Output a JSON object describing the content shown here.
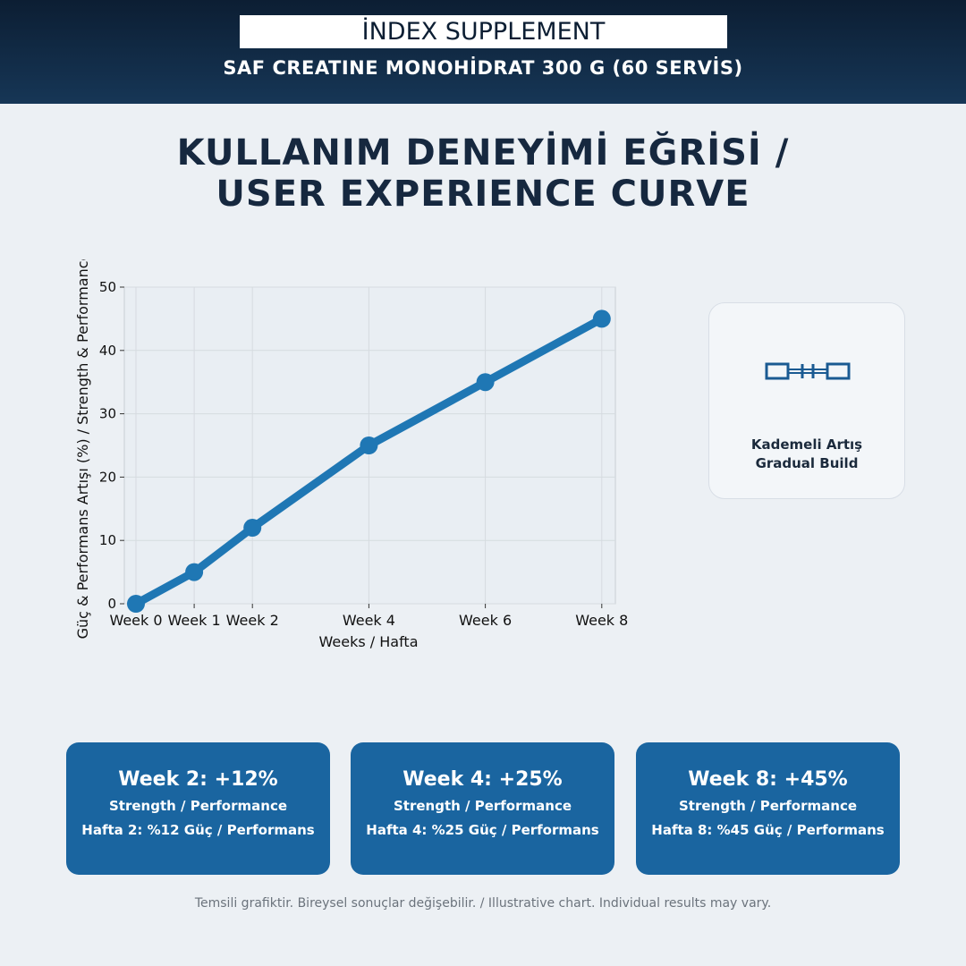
{
  "header": {
    "brand": "İNDEX SUPPLEMENT",
    "product": "SAF CREATINE MONOHİDRAT 300 G (60 SERVİS)"
  },
  "title": {
    "line1": "KULLANIM DENEYİMİ EĞRİSİ /",
    "line2": "USER EXPERIENCE CURVE"
  },
  "chart_data": {
    "type": "line",
    "xlabel": "Weeks / Hafta",
    "ylabel": "Güç & Performans Artışı (%) / Strength & Performance",
    "x": [
      0,
      1,
      2,
      4,
      6,
      8
    ],
    "categories": [
      "Week 0",
      "Week 1",
      "Week 2",
      "Week 4",
      "Week 6",
      "Week 8"
    ],
    "values": [
      0,
      5,
      12,
      25,
      35,
      45
    ],
    "ylim": [
      0,
      50
    ],
    "yticks": [
      "0",
      "10",
      "20",
      "30",
      "40",
      "50"
    ],
    "grid": true,
    "color": "#1f77b4"
  },
  "card": {
    "icon": "dumbbell-icon",
    "line1": "Kademeli Artış",
    "line2": "Gradual Build"
  },
  "stats": [
    {
      "head": "Week 2: +12%",
      "sub": "Strength / Performance",
      "tr": "Hafta 2: %12 Güç / Performans"
    },
    {
      "head": "Week 4: +25%",
      "sub": "Strength / Performance",
      "tr": "Hafta 4: %25 Güç / Performans"
    },
    {
      "head": "Week 8: +45%",
      "sub": "Strength / Performance",
      "tr": "Hafta 8: %45 Güç / Performans"
    }
  ],
  "footer": "Temsili grafiktir. Bireysel sonuçlar değişebilir. / Illustrative chart. Individual results may vary."
}
